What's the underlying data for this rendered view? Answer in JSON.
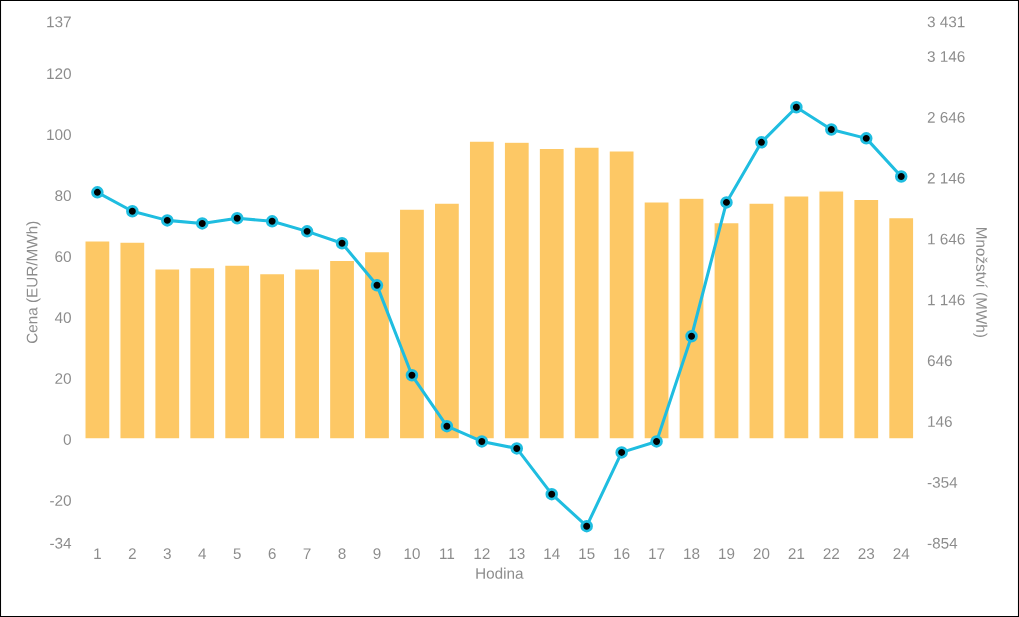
{
  "chart_data": {
    "type": "bar",
    "xlabel": "Hodina",
    "ylabel": "Cena (EUR/MWh)",
    "y2label": "Množství (MWh)",
    "categories": [
      "1",
      "2",
      "3",
      "4",
      "5",
      "6",
      "7",
      "8",
      "9",
      "10",
      "11",
      "12",
      "13",
      "14",
      "15",
      "16",
      "17",
      "18",
      "19",
      "20",
      "21",
      "22",
      "23",
      "24"
    ],
    "series": [
      {
        "axis": "y2",
        "color": "#fdc865",
        "values": [
          1630,
          1620,
          1400,
          1410,
          1430,
          1360,
          1400,
          1470,
          1540,
          1890,
          1940,
          2450,
          2440,
          2390,
          2400,
          2370,
          1950,
          1980,
          1780,
          1940,
          2000,
          2040,
          1970,
          1820
        ]
      },
      {
        "type": "line",
        "axis": "y",
        "color": "#1fbde0",
        "marker": "circle",
        "values": [
          81,
          74.8,
          71.8,
          70.8,
          72.5,
          71.5,
          68.2,
          64.3,
          50.5,
          21,
          4.3,
          -0.7,
          -3,
          -18,
          -28.5,
          -4.3,
          -0.7,
          33.8,
          77.7,
          97.4,
          108.9,
          101.6,
          98.7,
          86.2
        ]
      }
    ],
    "ylim": [
      -34,
      137
    ],
    "yticks": [
      -34,
      -20,
      0,
      20,
      40,
      60,
      80,
      100,
      120,
      137
    ],
    "y2lim": [
      -854,
      3431
    ],
    "y2ticks": [
      -854,
      -354,
      146,
      646,
      {
        "value": 1146,
        "label": "1 146"
      },
      {
        "value": 1646,
        "label": "1 646"
      },
      {
        "value": 2146,
        "label": "2 146"
      },
      {
        "value": 2646,
        "label": "2 646"
      },
      {
        "value": 3146,
        "label": "3 146"
      },
      {
        "value": 3431,
        "label": "3 431"
      }
    ],
    "grid": false,
    "legend": false
  }
}
